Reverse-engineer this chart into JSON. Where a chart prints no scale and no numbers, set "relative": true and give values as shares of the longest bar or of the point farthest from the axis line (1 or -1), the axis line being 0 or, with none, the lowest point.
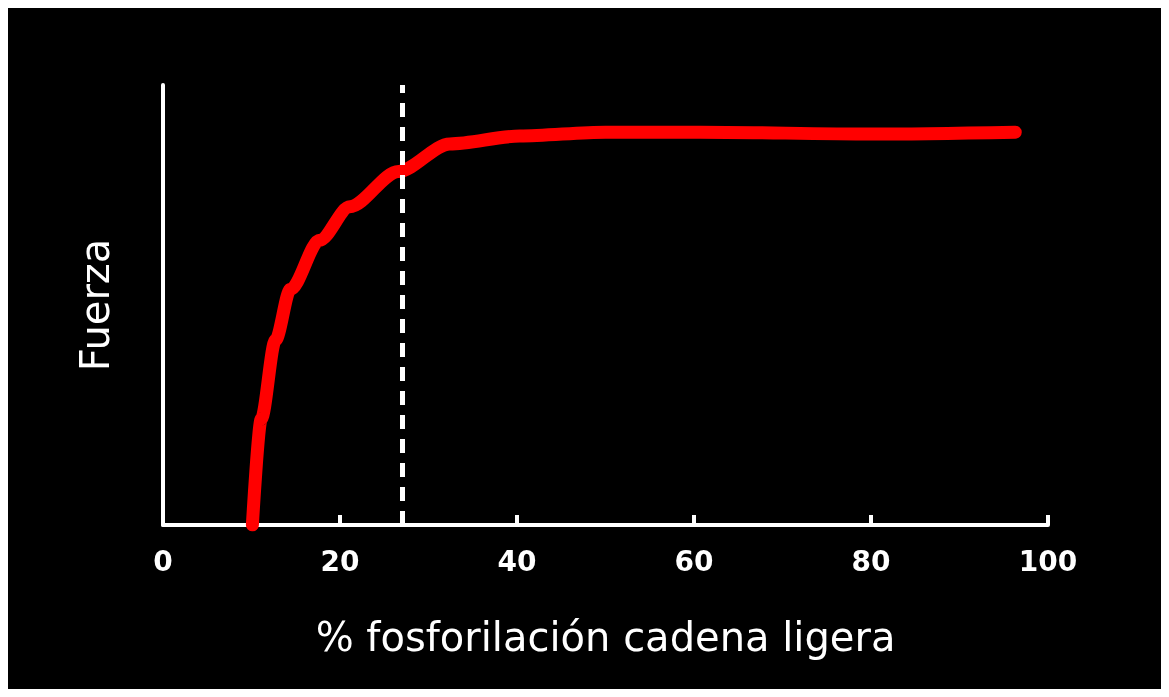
{
  "chart_data": {
    "type": "line",
    "xlabel": "% fosforilación cadena ligera",
    "ylabel": "Fuerza",
    "relative": true,
    "xlim": [
      0,
      100
    ],
    "xticks": [
      0,
      20,
      40,
      60,
      80,
      100
    ],
    "series": [
      {
        "color": "#ff0000",
        "x": [
          10.1,
          11.1,
          12.7,
          14.4,
          17.7,
          21.1,
          26.6,
          32.4,
          40.3,
          50,
          60.7,
          80,
          96.3
        ],
        "values": [
          0,
          0.27,
          0.47,
          0.6,
          0.725,
          0.81,
          0.9,
          0.97,
          0.99,
          1,
          1,
          0.995,
          1
        ]
      }
    ],
    "ref_lines": [
      {
        "axis": "x",
        "value": 27,
        "color": "#ffffff",
        "line_style": "dashed"
      }
    ]
  }
}
